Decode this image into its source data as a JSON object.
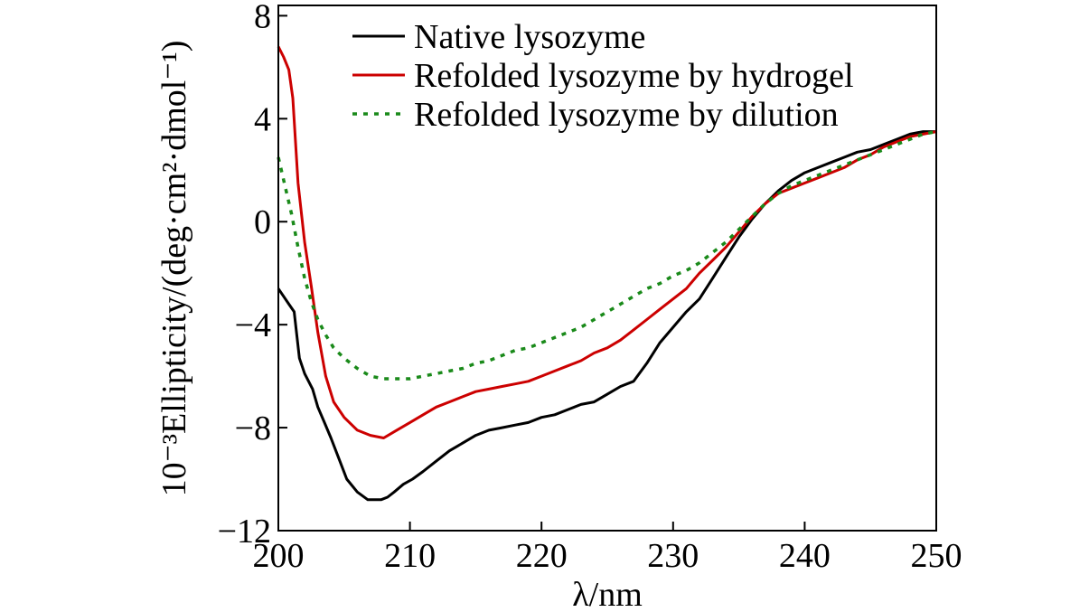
{
  "chart_data": {
    "type": "line",
    "title": "",
    "xlabel": "λ/nm",
    "ylabel": "10⁻³Ellipticity/(deg·cm²·dmol⁻¹)",
    "xlim": [
      200,
      250
    ],
    "ylim": [
      -12,
      8.4
    ],
    "x_ticks": [
      200,
      210,
      220,
      230,
      240,
      250
    ],
    "y_ticks": [
      8,
      4,
      0,
      -4,
      -8,
      -12
    ],
    "x_tick_labels": [
      "200",
      "210",
      "220",
      "230",
      "240",
      "250"
    ],
    "y_tick_labels": [
      "8",
      "4",
      "0",
      "−4",
      "−8",
      "−12"
    ],
    "grid": false,
    "legend_position": "top-right",
    "series": [
      {
        "name": "Native lysozyme",
        "color": "#000000",
        "style": "solid",
        "x": [
          200,
          200.4,
          200.8,
          201.2,
          201.6,
          202,
          202.6,
          203,
          203.5,
          204,
          204.6,
          205.2,
          206,
          206.8,
          207.4,
          207.8,
          208.3,
          208.8,
          209.5,
          210.2,
          211,
          212,
          213,
          214,
          215,
          216,
          217,
          218,
          219,
          220,
          221,
          222,
          223,
          224,
          225,
          226,
          227,
          228,
          229,
          230,
          231,
          232,
          233,
          234,
          235,
          236,
          237,
          238,
          239,
          240,
          241,
          242,
          243,
          244,
          245,
          246,
          247,
          248,
          249,
          250
        ],
        "values": [
          -2.6,
          -2.9,
          -3.2,
          -3.5,
          -5.3,
          -5.9,
          -6.5,
          -7.2,
          -7.8,
          -8.4,
          -9.2,
          -10.0,
          -10.5,
          -10.8,
          -10.8,
          -10.8,
          -10.7,
          -10.5,
          -10.2,
          -10.0,
          -9.7,
          -9.3,
          -8.9,
          -8.6,
          -8.3,
          -8.1,
          -8.0,
          -7.9,
          -7.8,
          -7.6,
          -7.5,
          -7.3,
          -7.1,
          -7.0,
          -6.7,
          -6.4,
          -6.2,
          -5.5,
          -4.7,
          -4.1,
          -3.5,
          -3.0,
          -2.2,
          -1.4,
          -0.6,
          0.1,
          0.7,
          1.2,
          1.6,
          1.9,
          2.1,
          2.3,
          2.5,
          2.7,
          2.8,
          3.0,
          3.2,
          3.4,
          3.5,
          3.5
        ]
      },
      {
        "name": "Refolded lysozyme by hydrogel",
        "color": "#cc0000",
        "style": "solid",
        "x": [
          200,
          200.4,
          200.8,
          201.1,
          201.5,
          202,
          202.5,
          203,
          203.6,
          204.2,
          205,
          206,
          207,
          208,
          209,
          210,
          211,
          212,
          213,
          214,
          215,
          216,
          217,
          218,
          219,
          220,
          221,
          222,
          223,
          224,
          225,
          226,
          227,
          228,
          229,
          230,
          231,
          232,
          233,
          234,
          235,
          236,
          237,
          238,
          239,
          240,
          241,
          242,
          243,
          244,
          245,
          246,
          247,
          248,
          249,
          250
        ],
        "values": [
          6.8,
          6.4,
          5.9,
          4.8,
          1.5,
          -0.8,
          -2.5,
          -4.3,
          -6.0,
          -7.0,
          -7.6,
          -8.1,
          -8.3,
          -8.4,
          -8.1,
          -7.8,
          -7.5,
          -7.2,
          -7.0,
          -6.8,
          -6.6,
          -6.5,
          -6.4,
          -6.3,
          -6.2,
          -6.0,
          -5.8,
          -5.6,
          -5.4,
          -5.1,
          -4.9,
          -4.6,
          -4.2,
          -3.8,
          -3.4,
          -3.0,
          -2.6,
          -2.0,
          -1.5,
          -1.0,
          -0.4,
          0.2,
          0.7,
          1.1,
          1.3,
          1.5,
          1.7,
          1.9,
          2.1,
          2.4,
          2.6,
          2.9,
          3.1,
          3.3,
          3.4,
          3.5
        ]
      },
      {
        "name": "Refolded lysozyme by dilution",
        "color": "#1a8a1a",
        "style": "dotted",
        "x": [
          200,
          200.5,
          201,
          201.5,
          202,
          202.5,
          203,
          203.6,
          204.2,
          205,
          206,
          207,
          208,
          209,
          210,
          211,
          212,
          213,
          214,
          215,
          216,
          217,
          218,
          219,
          220,
          221,
          222,
          223,
          224,
          225,
          226,
          227,
          228,
          229,
          230,
          231,
          232,
          233,
          234,
          235,
          236,
          237,
          238,
          239,
          240,
          241,
          242,
          243,
          244,
          245,
          246,
          247,
          248,
          249,
          250
        ],
        "values": [
          2.5,
          1.4,
          0.3,
          -1.0,
          -2.2,
          -3.1,
          -3.8,
          -4.4,
          -4.9,
          -5.3,
          -5.7,
          -6.0,
          -6.1,
          -6.1,
          -6.1,
          -6.0,
          -5.9,
          -5.8,
          -5.7,
          -5.5,
          -5.4,
          -5.2,
          -5.0,
          -4.9,
          -4.7,
          -4.5,
          -4.3,
          -4.1,
          -3.8,
          -3.5,
          -3.2,
          -2.9,
          -2.6,
          -2.4,
          -2.1,
          -1.9,
          -1.6,
          -1.2,
          -0.8,
          -0.3,
          0.2,
          0.7,
          1.1,
          1.4,
          1.6,
          1.8,
          2.0,
          2.2,
          2.4,
          2.6,
          2.8,
          3.0,
          3.2,
          3.4,
          3.5
        ]
      }
    ]
  }
}
